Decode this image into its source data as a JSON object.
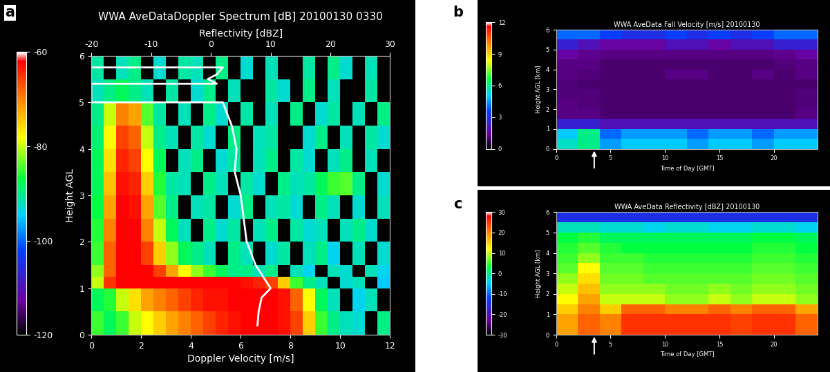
{
  "chart_data": [
    {
      "type": "heatmap",
      "label": "a",
      "title": "WWA AveDataDoppler Spectrum [dB] 20100130 0330",
      "x_label": "Doppler Velocity [m/s]",
      "y_label": "Height AGL",
      "x2_label": "Reflectivity [dBZ]",
      "xlim": [
        0,
        12
      ],
      "xticks": [
        0,
        2,
        4,
        6,
        8,
        10,
        12
      ],
      "ylim": [
        0,
        6
      ],
      "yticks": [
        0,
        1,
        2,
        3,
        4,
        5,
        6
      ],
      "x2lim": [
        -20,
        30
      ],
      "x2ticks": [
        -20,
        -10,
        0,
        10,
        20,
        30
      ],
      "x_edges": [
        0,
        0.5,
        1,
        1.5,
        2,
        2.5,
        3,
        3.5,
        4,
        4.5,
        5,
        5.5,
        6,
        6.5,
        7,
        7.5,
        8,
        8.5,
        9,
        9.5,
        10,
        10.5,
        11,
        11.5,
        12
      ],
      "y_edges": [
        0,
        0.5,
        1.0,
        1.25,
        1.5,
        2.0,
        2.5,
        3.0,
        3.5,
        4.0,
        4.5,
        5.0,
        5.5,
        6.0
      ],
      "cells": [
        [
          -85,
          -88,
          -85,
          -80,
          -78,
          -75,
          -72,
          -70,
          -68,
          -66,
          -64,
          -63,
          -62,
          -62,
          -62,
          -63,
          -66,
          -75,
          -85,
          -90,
          -92,
          -93,
          null,
          -90
        ],
        [
          -88,
          -86,
          -80,
          -76,
          -72,
          -70,
          -68,
          -66,
          -64,
          -63,
          -63,
          -62,
          -62,
          -62,
          -62,
          -63,
          -68,
          -78,
          -88,
          -92,
          null,
          -94,
          -92,
          null
        ],
        [
          -80,
          -65,
          -62,
          -62,
          -62,
          -62,
          -62,
          -62,
          -62,
          -62,
          -62,
          -62,
          -63,
          -64,
          -66,
          -75,
          -85,
          -90,
          -92,
          null,
          -93,
          -92,
          null,
          -95
        ],
        [
          -82,
          -68,
          -62,
          -62,
          -62,
          -66,
          -72,
          -78,
          -82,
          -85,
          -88,
          -90,
          -90,
          -92,
          -90,
          null,
          -92,
          -94,
          null,
          -92,
          -93,
          null,
          -92,
          -94
        ],
        [
          -85,
          -68,
          -62,
          -62,
          -66,
          -75,
          -82,
          -88,
          -90,
          -92,
          null,
          -90,
          -92,
          null,
          -93,
          -91,
          null,
          -92,
          -90,
          -94,
          null,
          -92,
          null,
          -93
        ],
        [
          -86,
          -70,
          -62,
          -62,
          -70,
          -80,
          -88,
          -92,
          null,
          -90,
          -93,
          -91,
          null,
          -92,
          -90,
          null,
          -91,
          -93,
          -92,
          null,
          -92,
          -90,
          -93,
          null
        ],
        [
          -87,
          -72,
          -62,
          -63,
          -72,
          -84,
          -90,
          null,
          -92,
          -91,
          null,
          -93,
          -90,
          null,
          -92,
          -91,
          -93,
          null,
          -90,
          -92,
          null,
          -93,
          null,
          -92
        ],
        [
          -88,
          -74,
          -63,
          -64,
          -75,
          -86,
          -91,
          -92,
          null,
          -90,
          -92,
          null,
          -91,
          -93,
          null,
          -90,
          -92,
          -91,
          -88,
          -85,
          -84,
          -90,
          null,
          -93
        ],
        [
          -88,
          -76,
          -64,
          -66,
          -78,
          -88,
          null,
          -92,
          -90,
          null,
          -93,
          -91,
          null,
          -92,
          -90,
          null,
          -91,
          -93,
          null,
          -92,
          -90,
          null,
          -92,
          null
        ],
        [
          -89,
          -78,
          -66,
          -68,
          -80,
          -90,
          -92,
          null,
          -91,
          -93,
          null,
          -90,
          null,
          -92,
          -91,
          null,
          null,
          -93,
          -90,
          null,
          -92,
          null,
          -91,
          -93
        ],
        [
          -90,
          -80,
          -70,
          -72,
          -84,
          -91,
          null,
          -92,
          null,
          -90,
          -93,
          null,
          -91,
          null,
          -92,
          null,
          -90,
          null,
          -93,
          -91,
          null,
          -92,
          null,
          -90
        ],
        [
          -92,
          -90,
          -88,
          -90,
          -92,
          null,
          -91,
          null,
          -93,
          -90,
          null,
          -92,
          null,
          null,
          -91,
          -93,
          null,
          -90,
          null,
          -92,
          null,
          null,
          -91,
          null
        ],
        [
          -91,
          null,
          -92,
          -90,
          null,
          -93,
          null,
          -91,
          -92,
          null,
          -90,
          null,
          -93,
          null,
          -92,
          null,
          null,
          -91,
          null,
          -90,
          -93,
          null,
          -92,
          null
        ]
      ],
      "colorbar": {
        "range": [
          -120,
          -60
        ],
        "ticks": [
          -120,
          -100,
          -80,
          -60
        ]
      },
      "profile": {
        "color": "white",
        "x": [
          7.8,
          8,
          8.5,
          10,
          9.5,
          7.5,
          6,
          5.5,
          5,
          4,
          4.3,
          3.5,
          2,
          -20,
          -20,
          -20,
          1,
          -0.5,
          1,
          2,
          -20
        ],
        "y": [
          0.2,
          0.5,
          0.8,
          1.0,
          1.1,
          1.5,
          2.0,
          2.5,
          3.0,
          3.5,
          4.0,
          4.5,
          5.0,
          5.0,
          5.05,
          5.4,
          5.4,
          5.5,
          5.6,
          5.75,
          5.75
        ]
      }
    },
    {
      "type": "heatmap",
      "label": "b",
      "title": "WWA AveData Fall Velocity [m/s] 20100130",
      "x_label": "Time of Day [GMT]",
      "y_label": "Height AGL [km]",
      "xlim": [
        0,
        24
      ],
      "xticks": [
        0,
        5,
        10,
        15,
        20
      ],
      "ylim": [
        0,
        6
      ],
      "yticks": [
        0,
        1,
        2,
        3,
        4,
        5,
        6
      ],
      "x_edges": [
        0,
        2,
        4,
        6,
        8,
        10,
        12,
        14,
        16,
        18,
        20,
        22,
        24
      ],
      "y_edges": [
        0,
        0.5,
        1,
        1.5,
        2,
        2.5,
        3,
        3.5,
        4,
        4.5,
        5,
        5.5,
        6
      ],
      "cells": [
        [
          5.5,
          6,
          4.5,
          5,
          5,
          5,
          4.5,
          5,
          5,
          4.5,
          5,
          5
        ],
        [
          5,
          6,
          4,
          4.5,
          4.5,
          4.5,
          4,
          4.5,
          4.5,
          4,
          4.5,
          4.5
        ],
        [
          2.5,
          2.5,
          2,
          2,
          2,
          2,
          2,
          2,
          2,
          2,
          2,
          2
        ],
        [
          1.2,
          1.2,
          1,
          1,
          1,
          1,
          1,
          1,
          1,
          1,
          1,
          1.2
        ],
        [
          1.2,
          1.1,
          1,
          1,
          1,
          1,
          1,
          1,
          1,
          1,
          1,
          1.1
        ],
        [
          1.1,
          1.1,
          1,
          1,
          1,
          1,
          1,
          1,
          1,
          1,
          1,
          1.1
        ],
        [
          1.1,
          1,
          1,
          1,
          1,
          1,
          1,
          1,
          1,
          1,
          1,
          1
        ],
        [
          1.2,
          1.1,
          1,
          1,
          1,
          1.2,
          1.2,
          1,
          1,
          1.2,
          1,
          1.2
        ],
        [
          1.2,
          1.2,
          1,
          1,
          1,
          1,
          1,
          1,
          1,
          1,
          1.1,
          1.2
        ],
        [
          1.5,
          1.3,
          1.2,
          1.2,
          1.2,
          1.2,
          1.2,
          1.2,
          1.2,
          1.2,
          1.3,
          1.5
        ],
        [
          2.5,
          2,
          1.5,
          1.5,
          1.5,
          2,
          2,
          1.5,
          2,
          2,
          2.5,
          2.5
        ],
        [
          4,
          4,
          3.5,
          3,
          3,
          3.5,
          3,
          3.5,
          3,
          3.5,
          4,
          4
        ]
      ],
      "colorbar": {
        "range": [
          0,
          12
        ],
        "ticks": [
          0,
          3,
          6,
          9,
          12
        ]
      },
      "arrow_x": 3.5
    },
    {
      "type": "heatmap",
      "label": "c",
      "title": "WWA AveData Reflectivity [dBZ] 20100130",
      "x_label": "Time of Day [GMT]",
      "y_label": "Height AGL [km]",
      "xlim": [
        0,
        24
      ],
      "xticks": [
        0,
        5,
        10,
        15,
        20
      ],
      "ylim": [
        0,
        6
      ],
      "yticks": [
        0,
        1,
        2,
        3,
        4,
        5,
        6
      ],
      "x_edges": [
        0,
        2,
        4,
        6,
        8,
        10,
        12,
        14,
        16,
        18,
        20,
        22,
        24
      ],
      "y_edges": [
        0,
        0.5,
        1,
        1.5,
        2,
        2.5,
        3,
        3.5,
        4,
        4.5,
        5,
        5.5,
        6
      ],
      "cells": [
        [
          18,
          22,
          20,
          25,
          25,
          25,
          25,
          25,
          24,
          25,
          25,
          22
        ],
        [
          18,
          22,
          20,
          25,
          25,
          25,
          25,
          25,
          24,
          25,
          25,
          22
        ],
        [
          15,
          20,
          15,
          22,
          22,
          20,
          20,
          22,
          20,
          22,
          22,
          18
        ],
        [
          12,
          18,
          10,
          10,
          10,
          8,
          8,
          10,
          8,
          10,
          10,
          8
        ],
        [
          10,
          16,
          8,
          8,
          8,
          7,
          7,
          8,
          7,
          8,
          8,
          7
        ],
        [
          8,
          14,
          7,
          7,
          6,
          6,
          6,
          6,
          6,
          7,
          7,
          6
        ],
        [
          6,
          12,
          6,
          6,
          5,
          5,
          5,
          5,
          5,
          6,
          6,
          5
        ],
        [
          5,
          8,
          5,
          5,
          4,
          4,
          4,
          4,
          4,
          5,
          5,
          4
        ],
        [
          4,
          6,
          4,
          3,
          3,
          3,
          3,
          3,
          3,
          4,
          4,
          3
        ],
        [
          3,
          4,
          2,
          2,
          2,
          2,
          2,
          2,
          2,
          3,
          3,
          2
        ],
        [
          -2,
          -2,
          -3,
          -3,
          -4,
          -3,
          -3,
          -4,
          -4,
          -3,
          -3,
          -4
        ],
        [
          -15,
          -15,
          -15,
          -15,
          -15,
          -15,
          -15,
          -15,
          -15,
          -15,
          -15,
          -15
        ]
      ],
      "colorbar": {
        "range": [
          -30,
          30
        ],
        "ticks": [
          -30,
          -20,
          -10,
          0,
          10,
          20,
          30
        ]
      },
      "arrow_x": 3.5
    }
  ]
}
